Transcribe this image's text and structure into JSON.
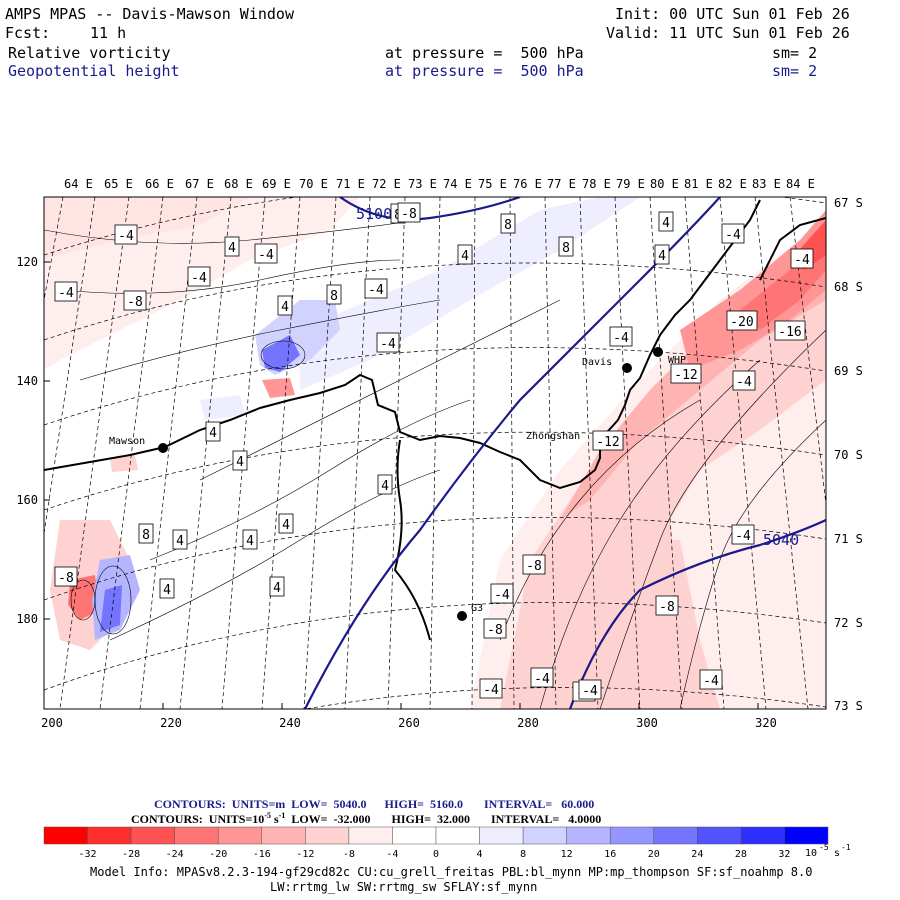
{
  "header": {
    "title": "AMPS MPAS -- Davis-Mawson Window",
    "init": "Init: 00 UTC Sun 01 Feb 26",
    "fcst_label": "Fcst:",
    "fcst_value": "11 h",
    "valid": "Valid: 11 UTC Sun 01 Feb 26",
    "field1": "Relative vorticity",
    "field1_pressure": "at pressure =  500 hPa",
    "field1_sm": "sm= 2",
    "field2": "Geopotential height",
    "field2_pressure": "at pressure =  500 hPa",
    "field2_sm": "sm= 2"
  },
  "map": {
    "top_labels": [
      "64 E",
      "65 E",
      "66 E",
      "67 E",
      "68 E",
      "69 E",
      "70 E",
      "71 E",
      "72 E",
      "73 E",
      "74 E",
      "75 E",
      "76 E",
      "77 E",
      "78 E",
      "79 E",
      "80 E",
      "81 E",
      "82 E",
      "83 E",
      "84 E"
    ],
    "right_labels": [
      "67 S",
      "68 S",
      "69 S",
      "70 S",
      "71 S",
      "72 S",
      "73 S"
    ],
    "x_ticks": [
      "200",
      "220",
      "240",
      "260",
      "280",
      "300",
      "320"
    ],
    "y_ticks": [
      "120",
      "140",
      "160",
      "180"
    ],
    "stations": [
      {
        "name": "Mawson"
      },
      {
        "name": "Davis"
      },
      {
        "name": "WHP"
      },
      {
        "name": "Zhongshan"
      },
      {
        "name": "G3"
      }
    ],
    "height_labels": [
      "5100",
      "5040"
    ],
    "vorticity_labels": [
      "-4",
      "4",
      "-4",
      "-4",
      "-4",
      "-8",
      "4",
      "8",
      "-4",
      "8",
      "8",
      "4",
      "8",
      "4",
      "4",
      "-4",
      "-4",
      "4",
      "4",
      "4",
      "4",
      "8",
      "4",
      "4",
      "4",
      "-8",
      "4",
      "-4",
      "-20",
      "-16",
      "-12",
      "-4",
      "-12",
      "-8",
      "-8",
      "-4",
      "-8",
      "-4",
      "-8",
      "-4",
      "-4",
      "-4",
      "-8",
      "-4",
      "-4"
    ],
    "colors": {
      "height_contour": "#1a1a8c",
      "neg_strong": "#f03030",
      "pos_strong": "#3030f0"
    }
  },
  "footer": {
    "contours1": "CONTOURS:  UNITS=m  LOW=  5040.0      HIGH=  5160.0       INTERVAL=   60.000",
    "contours2_a": "CONTOURS:  UNITS=10",
    "contours2_exp": "-5",
    "contours2_b": " s",
    "contours2_exp2": "-1",
    "contours2_c": "  LOW=  -32.000       HIGH=  32.000       INTERVAL=   4.0000",
    "colorbar_labels": [
      "-32",
      "-28",
      "-24",
      "-20",
      "-16",
      "-12",
      "-8",
      "-4",
      "0",
      "4",
      "8",
      "12",
      "16",
      "20",
      "24",
      "28",
      "32"
    ],
    "colorbar_units": "10",
    "colorbar_units_exp": "-5",
    "colorbar_units_s": "s",
    "colorbar_units_exp2": "-1",
    "colorbar_colors": [
      "#ff0000",
      "#ff2e2e",
      "#ff5252",
      "#ff7474",
      "#ff9595",
      "#ffb4b4",
      "#ffd2d2",
      "#ffeeee",
      "#ffffff",
      "#ffffff",
      "#eeeeff",
      "#d2d2ff",
      "#b4b4ff",
      "#9595ff",
      "#7474ff",
      "#5252ff",
      "#2e2eff",
      "#0000ff"
    ],
    "model_info1": "Model Info: MPASv8.2.3-194-gf29cd82c CU:cu_grell_freitas PBL:bl_mynn MP:mp_thompson SF:sf_noahmp 8.0",
    "model_info2": "LW:rrtmg_lw SW:rrtmg_sw SFLAY:sf_mynn"
  }
}
